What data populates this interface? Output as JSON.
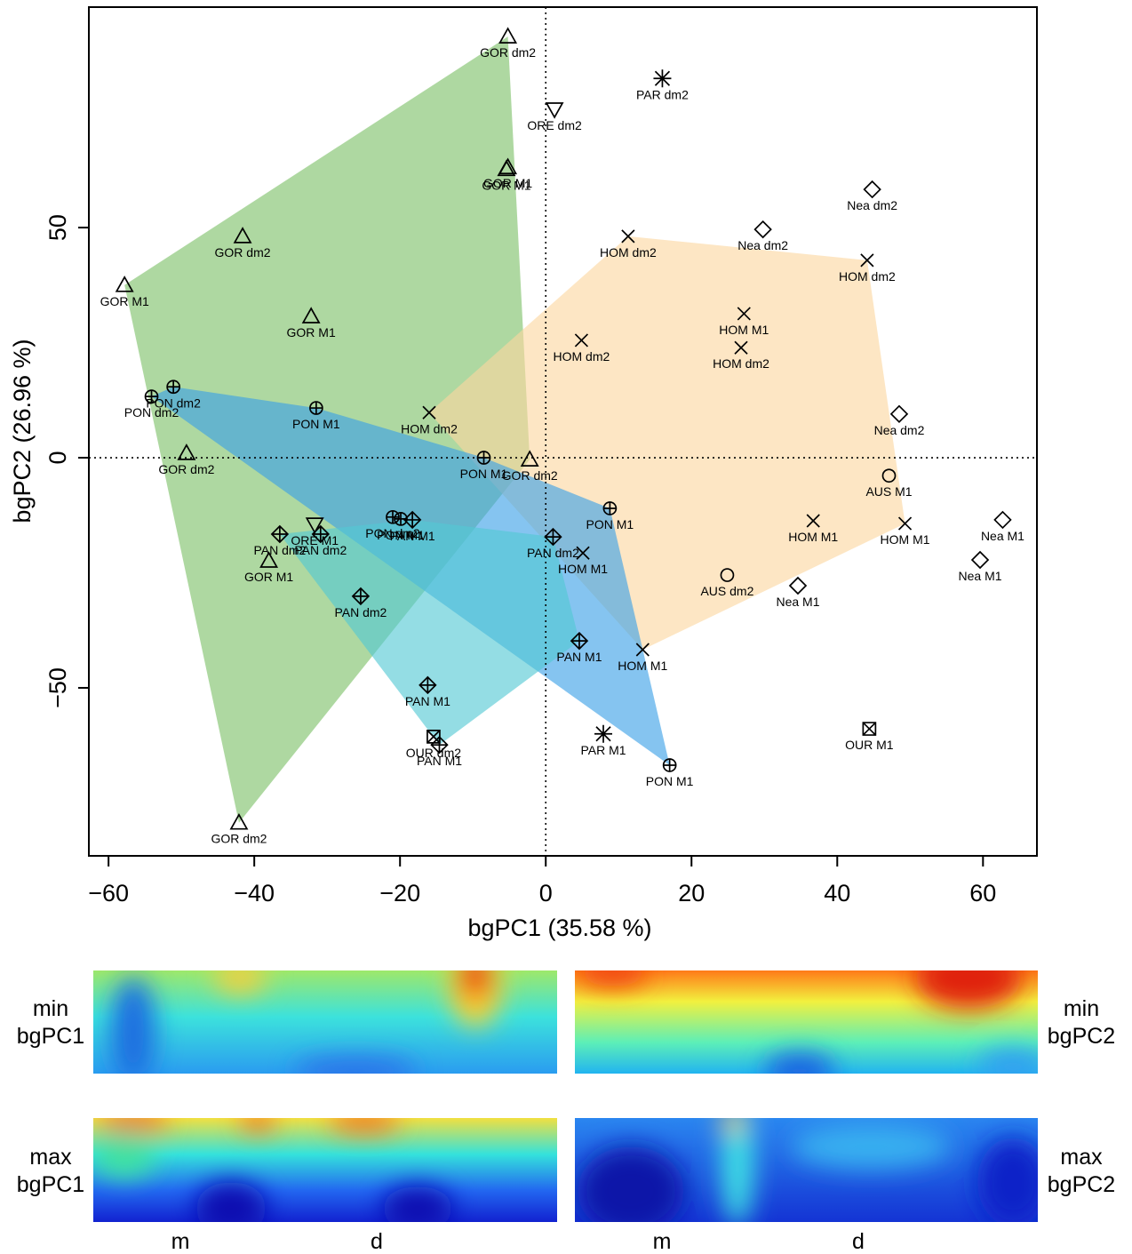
{
  "chart_data": {
    "type": "scatter",
    "xlabel": "bgPC1 (35.58 %)",
    "ylabel": "bgPC2 (26.96 %)",
    "xlim": [
      -62.7,
      67.4
    ],
    "ylim": [
      -86.5,
      97.9
    ],
    "xticks": [
      {
        "value": -60,
        "label": "−60"
      },
      {
        "value": -40,
        "label": "−40"
      },
      {
        "value": -20,
        "label": "−20"
      },
      0,
      20,
      40,
      60
    ],
    "yticks": [
      {
        "value": -50,
        "label": "−50"
      },
      0,
      50
    ],
    "zero_lines": true,
    "series": [
      {
        "marker": "triangle",
        "hull_color": "#7cc067",
        "labels": [
          "GOR dm2",
          "GOR M1",
          "GOR M1",
          "GOR dm2",
          "GOR M1",
          "GOR M1",
          "GOR dm2",
          "GOR dm2",
          "GOR M1",
          "GOR dm2"
        ],
        "x": [
          -5.2,
          -5.2,
          -5.4,
          -41.6,
          -57.8,
          -32.2,
          -49.3,
          -2.2,
          -38.0,
          -42.1
        ],
        "y": [
          91.5,
          63.1,
          62.7,
          48.1,
          37.5,
          30.7,
          1.0,
          -0.4,
          -22.4,
          -79.3
        ]
      },
      {
        "marker": "x",
        "hull_color": "#fbd6a0",
        "labels": [
          "HOM dm2",
          "HOM dm2",
          "HOM M1",
          "HOM dm2",
          "HOM dm2",
          "HOM dm2",
          "HOM M1",
          "HOM M1",
          "HOM M1",
          "HOM M1"
        ],
        "x": [
          11.3,
          44.1,
          27.2,
          26.8,
          4.9,
          -16.0,
          36.7,
          49.3,
          5.1,
          13.3
        ],
        "y": [
          48.1,
          42.9,
          31.3,
          23.9,
          25.5,
          9.8,
          -13.7,
          -14.3,
          -20.7,
          -41.7
        ]
      },
      {
        "marker": "circle-plus",
        "hull_color": "#3a9fe6",
        "labels": [
          "PON dm2",
          "PON dm2",
          "PON M1",
          "PON M1",
          "PON dm2",
          "PON M1",
          "PON M1",
          "PON M1"
        ],
        "x": [
          -51.1,
          -54.1,
          -31.5,
          -8.5,
          -21.0,
          -19.9,
          8.8,
          17.0
        ],
        "y": [
          15.4,
          13.3,
          10.8,
          0.0,
          -12.9,
          -13.3,
          -11.0,
          -66.8
        ]
      },
      {
        "marker": "diamond-plus",
        "hull_color": "#52c8d4",
        "labels": [
          "PAN dm2",
          "PAN dm2",
          "PAN M1",
          "PAN dm2",
          "PAN dm2",
          "PAN M1",
          "PAN M1",
          "PAN M1"
        ],
        "x": [
          -36.5,
          -30.9,
          -18.3,
          1.0,
          -25.4,
          4.6,
          -16.2,
          -14.6
        ],
        "y": [
          -16.6,
          -16.6,
          -13.5,
          -17.2,
          -30.1,
          -39.8,
          -49.4,
          -62.4
        ]
      },
      {
        "marker": "down-triangle",
        "hull_color": null,
        "labels": [
          "ORE dm2",
          "ORE M1"
        ],
        "x": [
          1.2,
          -31.7
        ],
        "y": [
          75.7,
          -14.5
        ]
      },
      {
        "marker": "asterisk",
        "hull_color": null,
        "labels": [
          "PAR dm2",
          "PAR M1"
        ],
        "x": [
          16.0,
          7.9
        ],
        "y": [
          82.4,
          -60.0
        ]
      },
      {
        "marker": "diamond",
        "hull_color": null,
        "labels": [
          "Nea dm2",
          "Nea dm2",
          "Nea dm2",
          "Nea M1",
          "Nea M1",
          "Nea M1"
        ],
        "x": [
          44.8,
          29.8,
          48.5,
          62.7,
          59.6,
          34.6
        ],
        "y": [
          58.3,
          49.6,
          9.5,
          -13.5,
          -22.2,
          -27.8
        ]
      },
      {
        "marker": "circle",
        "hull_color": null,
        "labels": [
          "AUS M1",
          "AUS dm2"
        ],
        "x": [
          47.1,
          24.9
        ],
        "y": [
          -3.9,
          -25.5
        ]
      },
      {
        "marker": "boxed-x",
        "hull_color": null,
        "labels": [
          "OUR M1",
          "OUR dm2"
        ],
        "x": [
          44.4,
          -15.4
        ],
        "y": [
          -58.9,
          -60.6
        ]
      }
    ]
  },
  "panels": [
    {
      "lines": [
        "min",
        "bgPC1"
      ]
    },
    {
      "lines": [
        "min",
        "bgPC2"
      ]
    },
    {
      "lines": [
        "max",
        "bgPC1"
      ]
    },
    {
      "lines": [
        "max",
        "bgPC2"
      ]
    }
  ],
  "panel_axis_labels": [
    "m",
    "d"
  ]
}
